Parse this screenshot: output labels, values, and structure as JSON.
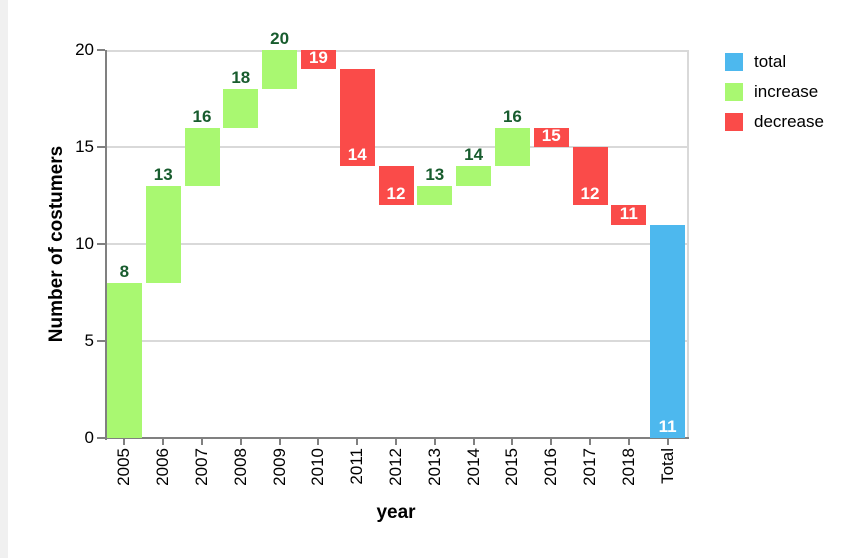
{
  "chart_data": {
    "type": "bar",
    "subtype": "waterfall",
    "xlabel": "year",
    "ylabel": "Number of costumers",
    "ylim": [
      0,
      20
    ],
    "yticks": [
      0,
      5,
      10,
      15,
      20
    ],
    "grid": true,
    "legend_position": "top-right",
    "categories": [
      "2005",
      "2006",
      "2007",
      "2008",
      "2009",
      "2010",
      "2011",
      "2012",
      "2013",
      "2014",
      "2015",
      "2016",
      "2017",
      "2018",
      "Total"
    ],
    "bars": [
      {
        "label": "2005",
        "start": 0,
        "end": 8,
        "kind": "increase",
        "value_label": "8"
      },
      {
        "label": "2006",
        "start": 8,
        "end": 13,
        "kind": "increase",
        "value_label": "13"
      },
      {
        "label": "2007",
        "start": 13,
        "end": 16,
        "kind": "increase",
        "value_label": "16"
      },
      {
        "label": "2008",
        "start": 16,
        "end": 18,
        "kind": "increase",
        "value_label": "18"
      },
      {
        "label": "2009",
        "start": 18,
        "end": 20,
        "kind": "increase",
        "value_label": "20"
      },
      {
        "label": "2010",
        "start": 20,
        "end": 19,
        "kind": "decrease",
        "value_label": "19"
      },
      {
        "label": "2011",
        "start": 19,
        "end": 14,
        "kind": "decrease",
        "value_label": "14"
      },
      {
        "label": "2012",
        "start": 14,
        "end": 12,
        "kind": "decrease",
        "value_label": "12"
      },
      {
        "label": "2013",
        "start": 12,
        "end": 13,
        "kind": "increase",
        "value_label": "13"
      },
      {
        "label": "2014",
        "start": 13,
        "end": 14,
        "kind": "increase",
        "value_label": "14"
      },
      {
        "label": "2015",
        "start": 14,
        "end": 16,
        "kind": "increase",
        "value_label": "16"
      },
      {
        "label": "2016",
        "start": 16,
        "end": 15,
        "kind": "decrease",
        "value_label": "15"
      },
      {
        "label": "2017",
        "start": 15,
        "end": 12,
        "kind": "decrease",
        "value_label": "12"
      },
      {
        "label": "2018",
        "start": 12,
        "end": 11,
        "kind": "decrease",
        "value_label": "11"
      },
      {
        "label": "Total",
        "start": 0,
        "end": 11,
        "kind": "total",
        "value_label": "11"
      }
    ],
    "legend": [
      {
        "label": "total",
        "color": "#4db8ee"
      },
      {
        "label": "increase",
        "color": "#a9f871"
      },
      {
        "label": "decrease",
        "color": "#fa4b49"
      }
    ],
    "colors": {
      "increase": "#a9f871",
      "decrease": "#fa4b49",
      "total": "#4db8ee",
      "increase_label_text": "#185c2e",
      "decrease_label_text": "#ffffff",
      "total_label_text": "#ffffff",
      "grid": "#d9d9d9",
      "axis": "#808080",
      "text": "#000000"
    }
  }
}
